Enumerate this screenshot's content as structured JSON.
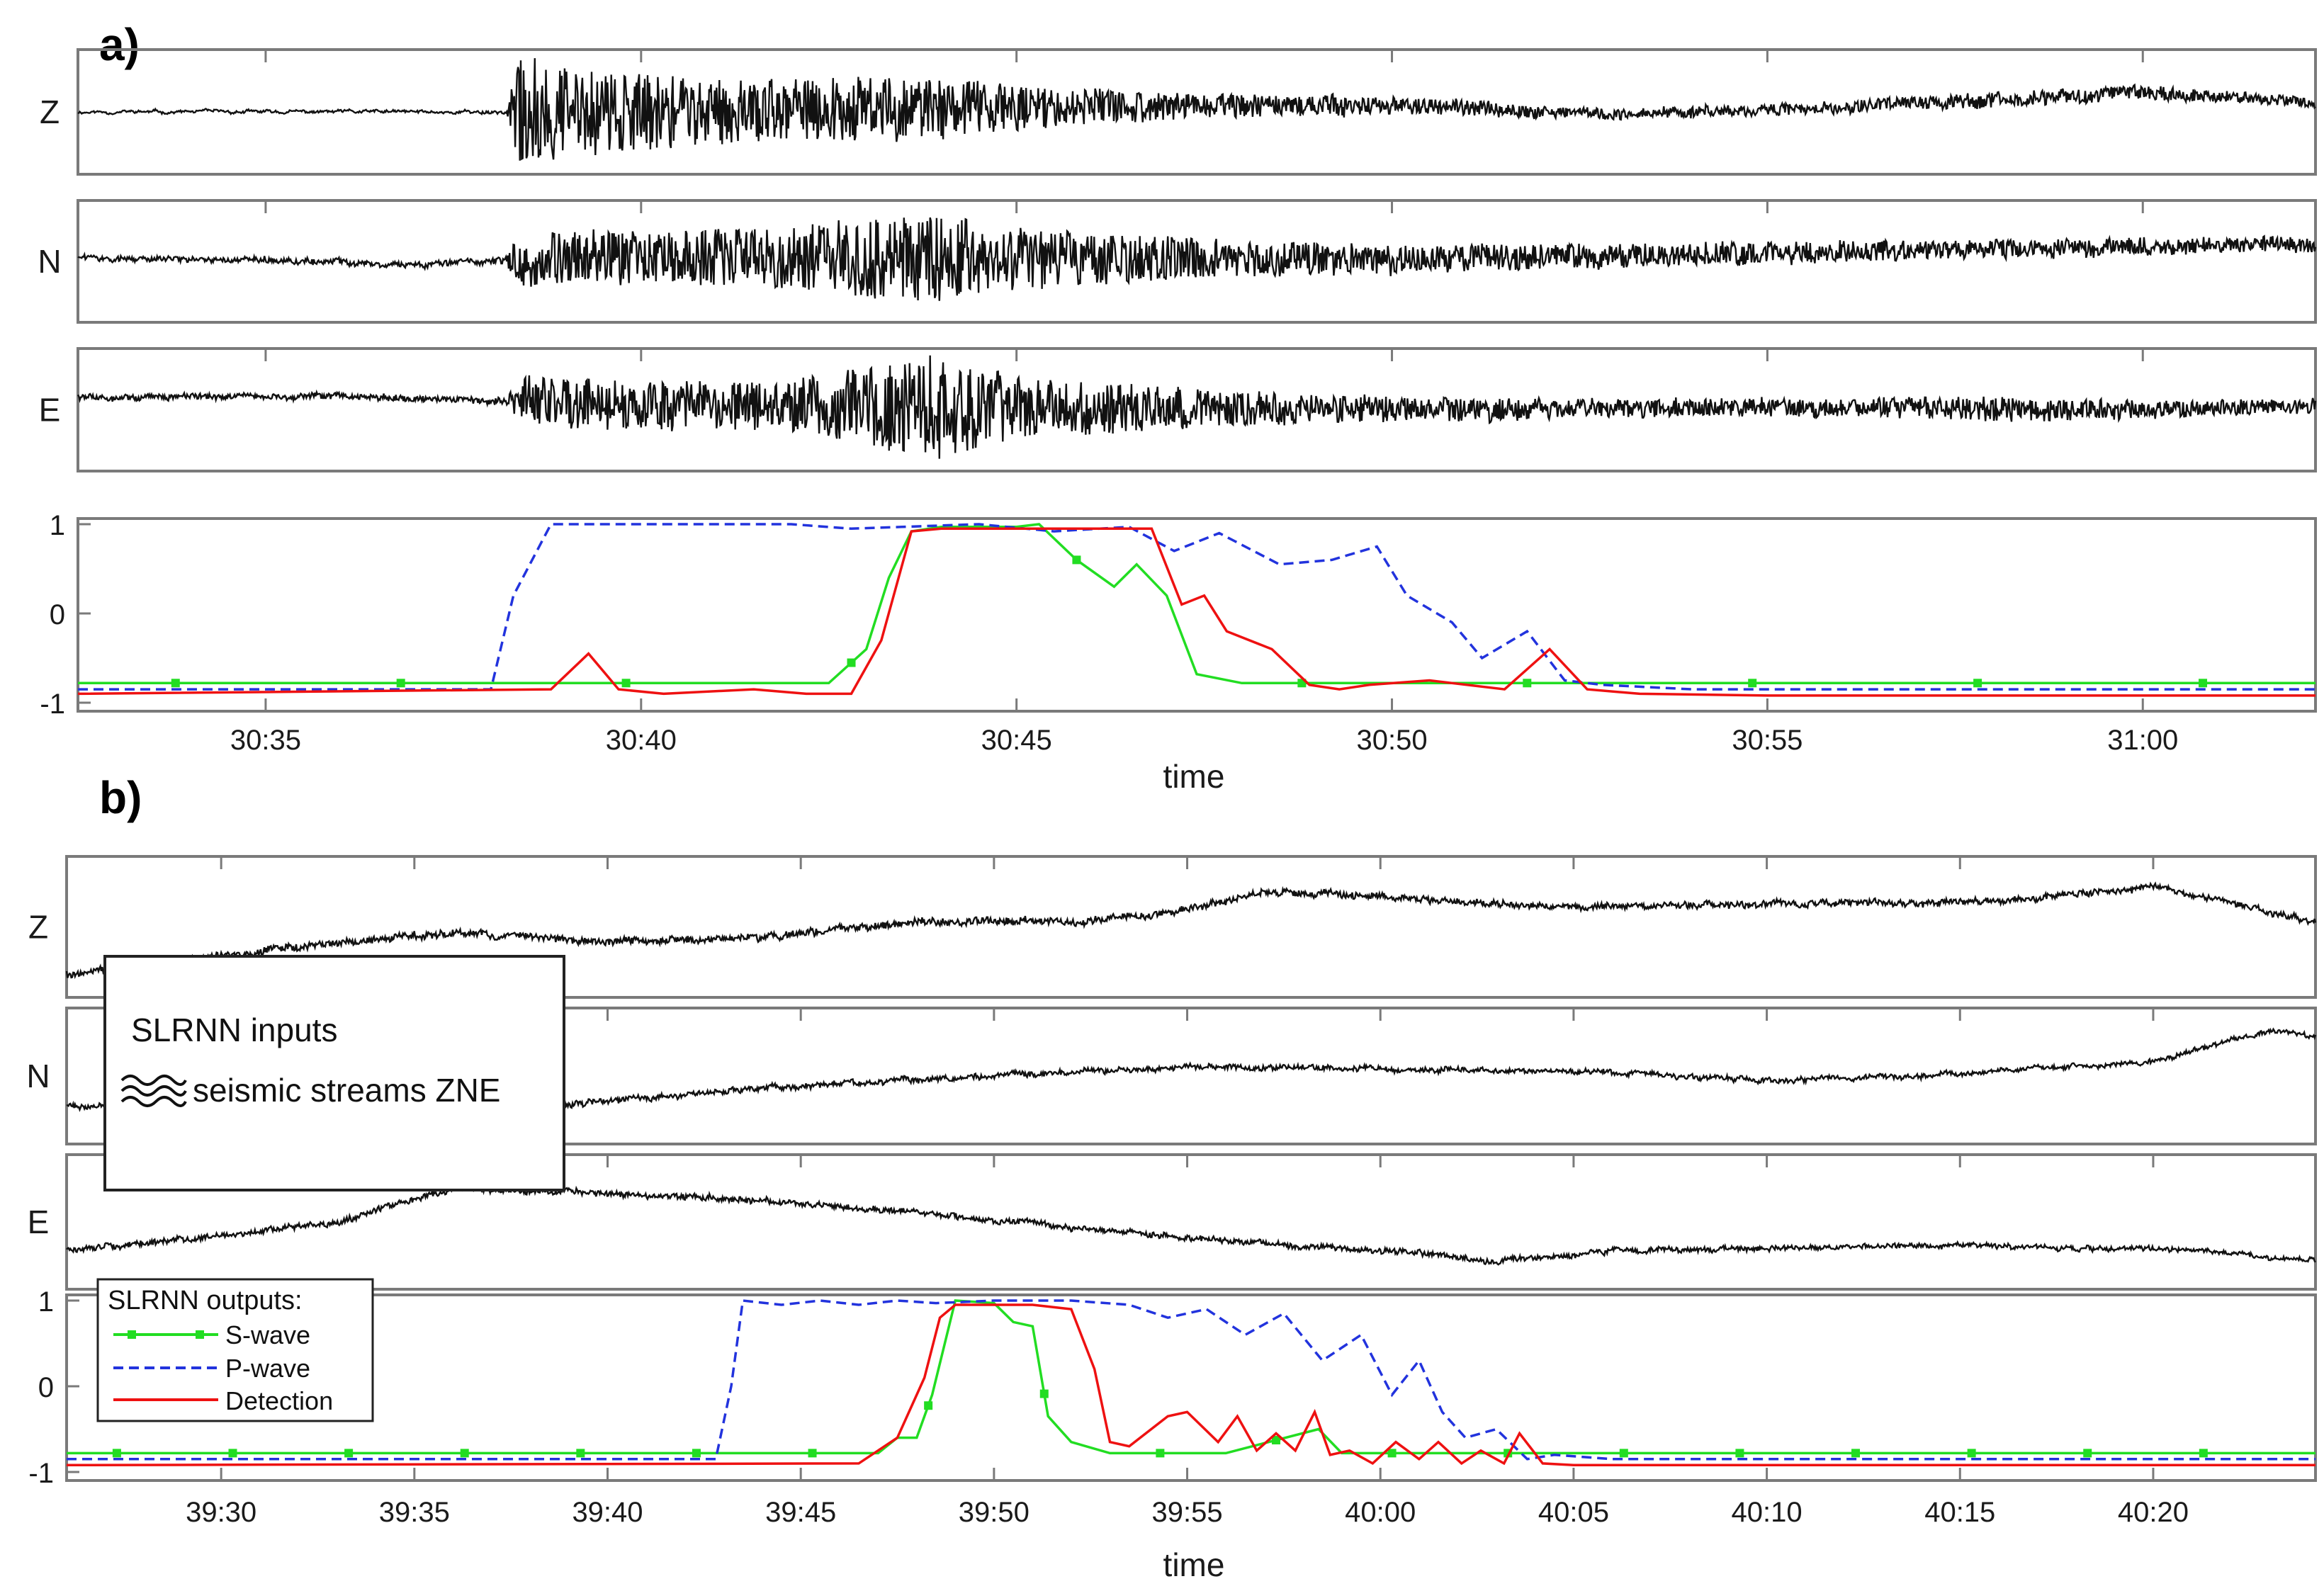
{
  "chart_data": [
    {
      "type": "line",
      "panel_label": "a)",
      "channels": [
        "Z",
        "N",
        "E"
      ],
      "xlabel": "time",
      "x_ticks": [
        "30:35",
        "30:40",
        "30:45",
        "30:50",
        "30:55",
        "31:00"
      ],
      "x_range_seconds": [
        32.5,
        62.3
      ],
      "x_tick_seconds": [
        35,
        40,
        45,
        50,
        55,
        60
      ],
      "y_ticks": [
        "1",
        "0",
        "-1"
      ],
      "ylim": [
        -1,
        1
      ],
      "series": [
        {
          "name": "S-wave",
          "color": "#22dd22",
          "style": "solid-with-markers",
          "x": [
            32.5,
            38,
            42.5,
            43.0,
            43.3,
            43.6,
            44.0,
            45.0,
            45.3,
            45.8,
            46.3,
            46.6,
            47.0,
            47.4,
            48,
            55,
            62.3
          ],
          "y": [
            -0.78,
            -0.78,
            -0.78,
            -0.4,
            0.4,
            0.92,
            0.97,
            0.97,
            1.0,
            0.6,
            0.3,
            0.55,
            0.2,
            -0.68,
            -0.78,
            -0.78,
            -0.78
          ]
        },
        {
          "name": "P-wave",
          "color": "#2233dd",
          "style": "dashed",
          "x": [
            32.5,
            38.0,
            38.3,
            38.8,
            39.2,
            42.0,
            42.8,
            44.5,
            45.5,
            46.5,
            47.1,
            47.7,
            48.5,
            49.2,
            49.8,
            50.2,
            50.8,
            51.2,
            51.8,
            52.3,
            52.8,
            54,
            62.3
          ],
          "y": [
            -0.85,
            -0.85,
            0.2,
            1.0,
            1.0,
            1.0,
            0.95,
            1.0,
            0.92,
            0.97,
            0.7,
            0.9,
            0.55,
            0.6,
            0.75,
            0.2,
            -0.1,
            -0.5,
            -0.2,
            -0.75,
            -0.8,
            -0.85,
            -0.85
          ]
        },
        {
          "name": "Detection",
          "color": "#ee1111",
          "style": "solid",
          "x": [
            32.5,
            38.8,
            39.3,
            39.7,
            40.3,
            41.5,
            42.2,
            42.8,
            43.2,
            43.6,
            44.0,
            46.0,
            46.8,
            47.2,
            47.5,
            47.8,
            48.4,
            48.9,
            49.3,
            49.7,
            50.5,
            51.5,
            52.1,
            52.6,
            53.3,
            55,
            62.3
          ],
          "y": [
            -0.9,
            -0.85,
            -0.45,
            -0.85,
            -0.9,
            -0.85,
            -0.9,
            -0.9,
            -0.3,
            0.92,
            0.95,
            0.95,
            0.95,
            0.1,
            0.2,
            -0.2,
            -0.4,
            -0.8,
            -0.85,
            -0.8,
            -0.75,
            -0.85,
            -0.4,
            -0.85,
            -0.9,
            -0.92,
            -0.92
          ]
        }
      ]
    },
    {
      "type": "line",
      "panel_label": "b)",
      "channels": [
        "Z",
        "N",
        "E"
      ],
      "xlabel": "time",
      "x_ticks": [
        "39:30",
        "39:35",
        "39:40",
        "39:45",
        "39:50",
        "39:55",
        "40:00",
        "40:05",
        "40:10",
        "40:15",
        "40:20"
      ],
      "x_range_seconds": [
        26.0,
        84.2
      ],
      "x_tick_seconds": [
        30,
        35,
        40,
        45,
        50,
        55,
        60,
        65,
        70,
        75,
        80
      ],
      "y_ticks": [
        "1",
        "0",
        "-1"
      ],
      "ylim": [
        -1,
        1
      ],
      "series": [
        {
          "name": "S-wave",
          "color": "#22dd22",
          "style": "solid-with-markers",
          "x": [
            26,
            47.0,
            47.5,
            48.0,
            48.4,
            49.0,
            50.0,
            50.5,
            51.0,
            51.4,
            52.0,
            53.0,
            56,
            58.4,
            59,
            60,
            62,
            64,
            84.2
          ],
          "y": [
            -0.78,
            -0.78,
            -0.6,
            -0.6,
            -0.1,
            1.0,
            0.97,
            0.75,
            0.7,
            -0.35,
            -0.65,
            -0.78,
            -0.78,
            -0.5,
            -0.78,
            -0.78,
            -0.78,
            -0.78,
            -0.78
          ]
        },
        {
          "name": "P-wave",
          "color": "#2233dd",
          "style": "dashed",
          "x": [
            26,
            42.8,
            43.2,
            43.5,
            44.5,
            45.5,
            46.5,
            47.5,
            48.5,
            50,
            52,
            53.5,
            54.5,
            55.5,
            56.5,
            57.5,
            58.5,
            59.5,
            60.3,
            61.0,
            61.6,
            62.2,
            63.0,
            63.8,
            64.5,
            66,
            84.2
          ],
          "y": [
            -0.85,
            -0.85,
            0.0,
            1.0,
            0.95,
            1.0,
            0.95,
            1.0,
            0.97,
            1.0,
            1.0,
            0.95,
            0.8,
            0.9,
            0.6,
            0.85,
            0.3,
            0.6,
            -0.1,
            0.3,
            -0.3,
            -0.6,
            -0.5,
            -0.85,
            -0.8,
            -0.85,
            -0.85
          ]
        },
        {
          "name": "Detection",
          "color": "#ee1111",
          "style": "solid",
          "x": [
            26,
            46.5,
            47.5,
            48.2,
            48.6,
            49.0,
            51.0,
            52.0,
            52.6,
            53.0,
            53.5,
            54.5,
            55.0,
            55.8,
            56.3,
            56.8,
            57.3,
            57.8,
            58.3,
            58.7,
            59.2,
            59.8,
            60.4,
            61.0,
            61.5,
            62.1,
            62.6,
            63.2,
            63.6,
            64.2,
            65.0,
            84.2
          ],
          "y": [
            -0.92,
            -0.9,
            -0.6,
            0.1,
            0.8,
            0.95,
            0.95,
            0.9,
            0.2,
            -0.65,
            -0.7,
            -0.35,
            -0.3,
            -0.65,
            -0.35,
            -0.75,
            -0.55,
            -0.75,
            -0.3,
            -0.8,
            -0.75,
            -0.9,
            -0.65,
            -0.85,
            -0.65,
            -0.9,
            -0.75,
            -0.9,
            -0.55,
            -0.9,
            -0.92,
            -0.92
          ]
        }
      ]
    }
  ],
  "inputs_legend": {
    "title": "SLRNN inputs",
    "entry": "seismic streams ZNE"
  },
  "outputs_legend": {
    "title": "SLRNN outputs:",
    "entries": [
      "S-wave",
      "P-wave",
      "Detection"
    ]
  }
}
